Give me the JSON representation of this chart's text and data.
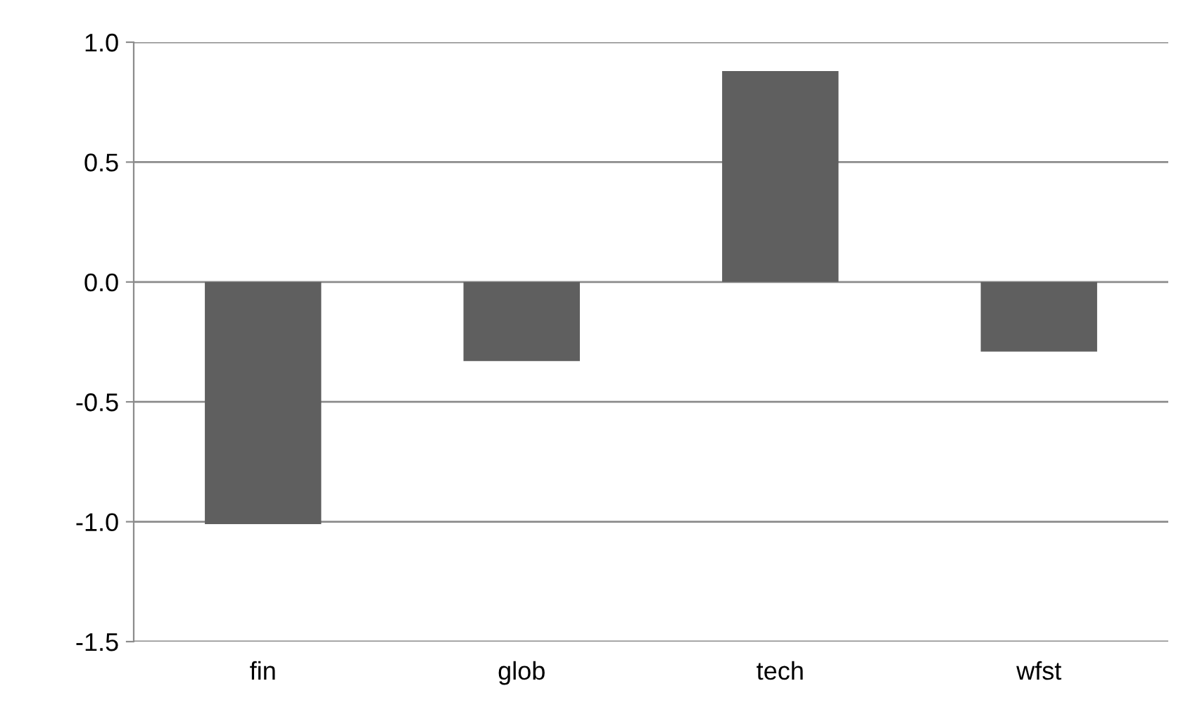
{
  "chart_data": {
    "type": "bar",
    "categories": [
      "fin",
      "glob",
      "tech",
      "wfst"
    ],
    "values": [
      -1.01,
      -0.33,
      0.88,
      -0.29
    ],
    "color": "#5f5f5f",
    "ylim": [
      -1.5,
      1.0
    ],
    "yticks": [
      {
        "value": -1.5,
        "label": "-1.5"
      },
      {
        "value": -1.0,
        "label": "-1.0"
      },
      {
        "value": -0.5,
        "label": "-0.5"
      },
      {
        "value": 0.0,
        "label": "0.0"
      },
      {
        "value": 0.5,
        "label": "0.5"
      },
      {
        "value": 1.0,
        "label": "1.0"
      }
    ],
    "grid": "y",
    "legend": false
  }
}
